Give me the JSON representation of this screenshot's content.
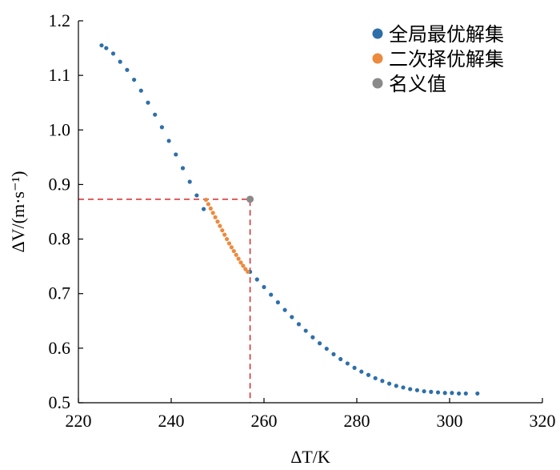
{
  "chart_data": {
    "type": "scatter",
    "xlabel": "ΔT/K",
    "ylabel": "ΔV/(m·s⁻¹)",
    "xlim": [
      220,
      320
    ],
    "ylim": [
      0.5,
      1.2
    ],
    "x_ticks": [
      220,
      240,
      260,
      280,
      300,
      320
    ],
    "y_ticks": [
      0.5,
      0.6,
      0.7,
      0.8,
      0.9,
      1.0,
      1.1,
      1.2
    ],
    "x_tick_labels": [
      "220",
      "240",
      "260",
      "280",
      "300",
      "320"
    ],
    "y_tick_labels": [
      "0.5",
      "0.6",
      "0.7",
      "0.8",
      "0.9",
      "1.0",
      "1.1",
      "1.2"
    ],
    "grid": false,
    "legend_position": "top-right",
    "series": [
      {
        "name": "全局最优解集",
        "color": "#2e6fa8",
        "x": [
          225.0,
          226.0,
          227.5,
          229.0,
          230.5,
          232.0,
          233.5,
          235.0,
          236.5,
          238.0,
          239.5,
          241.0,
          242.5,
          244.0,
          245.5,
          247.0,
          257.0,
          258.5,
          260.0,
          261.5,
          263.0,
          264.5,
          266.0,
          267.5,
          269.0,
          270.5,
          272.0,
          273.5,
          275.0,
          276.5,
          278.0,
          279.5,
          281.0,
          282.5,
          284.0,
          285.5,
          287.0,
          288.5,
          290.0,
          291.5,
          293.0,
          294.5,
          296.0,
          297.5,
          299.0,
          300.5,
          302.0,
          303.5,
          306.0
        ],
        "y": [
          1.155,
          1.15,
          1.14,
          1.125,
          1.11,
          1.092,
          1.072,
          1.05,
          1.028,
          1.005,
          0.98,
          0.955,
          0.93,
          0.905,
          0.88,
          0.855,
          0.74,
          0.726,
          0.712,
          0.698,
          0.684,
          0.67,
          0.657,
          0.644,
          0.632,
          0.62,
          0.609,
          0.599,
          0.589,
          0.58,
          0.572,
          0.564,
          0.557,
          0.551,
          0.545,
          0.54,
          0.535,
          0.531,
          0.528,
          0.525,
          0.523,
          0.521,
          0.52,
          0.519,
          0.518,
          0.518,
          0.517,
          0.517,
          0.517
        ]
      },
      {
        "name": "二次择优解集",
        "color": "#ec8a3e",
        "x": [
          247.5,
          248.0,
          248.5,
          249.0,
          249.5,
          250.0,
          250.5,
          251.0,
          251.5,
          252.0,
          252.5,
          253.0,
          253.5,
          254.0,
          254.5,
          255.0,
          255.5,
          256.0,
          256.5
        ],
        "y": [
          0.872,
          0.864,
          0.856,
          0.848,
          0.84,
          0.832,
          0.824,
          0.816,
          0.808,
          0.8,
          0.792,
          0.785,
          0.778,
          0.771,
          0.764,
          0.757,
          0.751,
          0.745,
          0.74
        ]
      },
      {
        "name": "名义值",
        "color": "#8a8a8a",
        "x": [
          257.0
        ],
        "y": [
          0.873
        ]
      }
    ],
    "reference_lines": [
      {
        "color": "#d62728",
        "dash": true,
        "points": [
          [
            220,
            0.873
          ],
          [
            257.0,
            0.873
          ],
          [
            257.0,
            0.5
          ]
        ]
      }
    ]
  }
}
